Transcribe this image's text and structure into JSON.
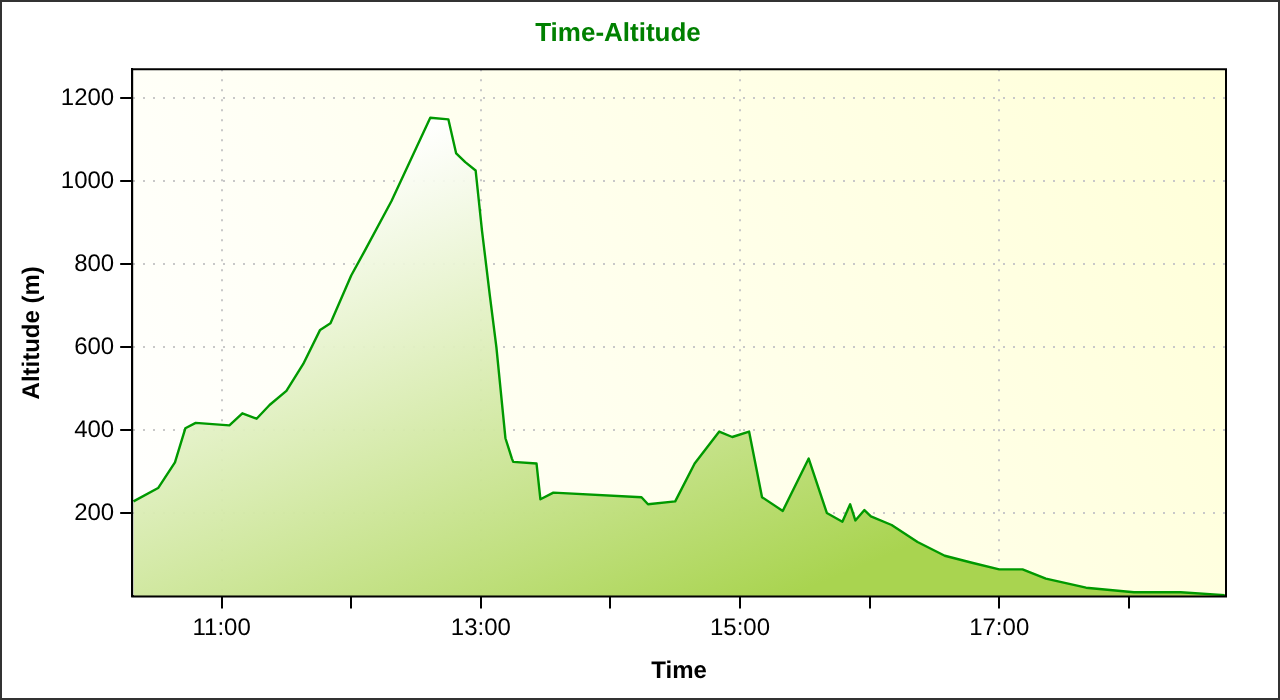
{
  "chart_data": {
    "type": "area",
    "title": "Time-Altitude",
    "xlabel": "Time",
    "ylabel": "Altitude (m)",
    "series": [
      {
        "color": "#009900",
        "x": [
          10.32,
          10.51,
          10.64,
          10.72,
          10.8,
          11.06,
          11.16,
          11.27,
          11.37,
          11.5,
          11.63,
          11.76,
          11.84,
          12.0,
          12.1,
          12.31,
          12.47,
          12.61,
          12.75,
          12.81,
          12.88,
          12.96,
          13.01,
          13.07,
          13.12,
          13.19,
          13.24,
          13.25,
          13.43,
          13.46,
          13.56,
          14.24,
          14.29,
          14.5,
          14.65,
          14.84,
          14.94,
          15.07,
          15.17,
          15.33,
          15.53,
          15.67,
          15.79,
          15.85,
          15.89,
          15.96,
          16.01,
          16.17,
          16.37,
          16.58,
          16.79,
          17.0,
          17.18,
          17.36,
          17.67,
          18.04,
          18.4,
          18.74
        ],
        "values": [
          229,
          261,
          323,
          405,
          418,
          412,
          441,
          428,
          461,
          495,
          560,
          642,
          658,
          773,
          830,
          952,
          1059,
          1153,
          1149,
          1067,
          1046,
          1026,
          879,
          724,
          601,
          381,
          332,
          324,
          320,
          234,
          250,
          239,
          222,
          229,
          320,
          397,
          384,
          397,
          239,
          206,
          332,
          201,
          180,
          222,
          183,
          208,
          193,
          172,
          131,
          98,
          81,
          65,
          65,
          43,
          21,
          10,
          10,
          3
        ]
      }
    ],
    "xlim": [
      10.31,
      18.75
    ],
    "ylim": [
      0,
      1270
    ],
    "xticks": [
      {
        "value": 11,
        "label": "11:00"
      },
      {
        "value": 12,
        "label": null
      },
      {
        "value": 13,
        "label": "13:00"
      },
      {
        "value": 14,
        "label": null
      },
      {
        "value": 15,
        "label": "15:00"
      },
      {
        "value": 16,
        "label": null
      },
      {
        "value": 17,
        "label": "17:00"
      },
      {
        "value": 18,
        "label": null
      }
    ],
    "yticks": [
      200,
      400,
      600,
      800,
      1000,
      1200
    ],
    "grid": true,
    "legend": false
  }
}
